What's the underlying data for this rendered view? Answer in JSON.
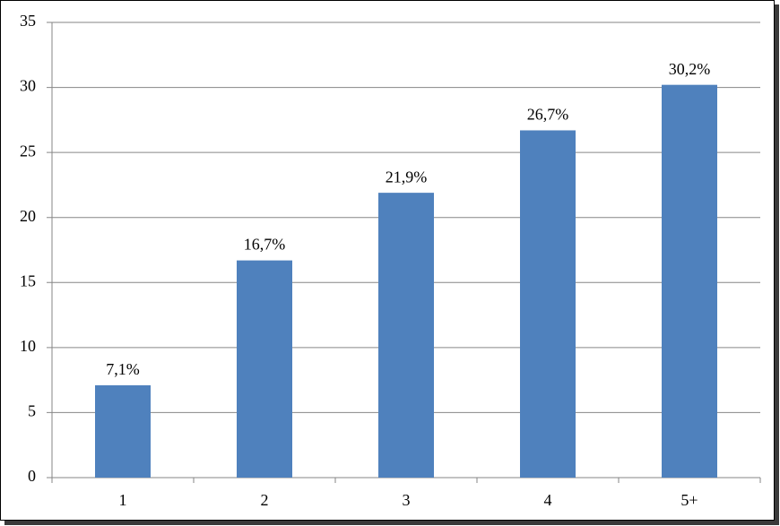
{
  "chart_data": {
    "type": "bar",
    "categories": [
      "1",
      "2",
      "3",
      "4",
      "5+"
    ],
    "values": [
      7.1,
      16.7,
      21.9,
      26.7,
      30.2
    ],
    "value_labels": [
      "7,1%",
      "16,7%",
      "21,9%",
      "26,7%",
      "30,2%"
    ],
    "color": "#4f81bd",
    "ylim": [
      0,
      35
    ],
    "yticks": [
      0,
      5,
      10,
      15,
      20,
      25,
      30,
      35
    ],
    "grid": true
  }
}
